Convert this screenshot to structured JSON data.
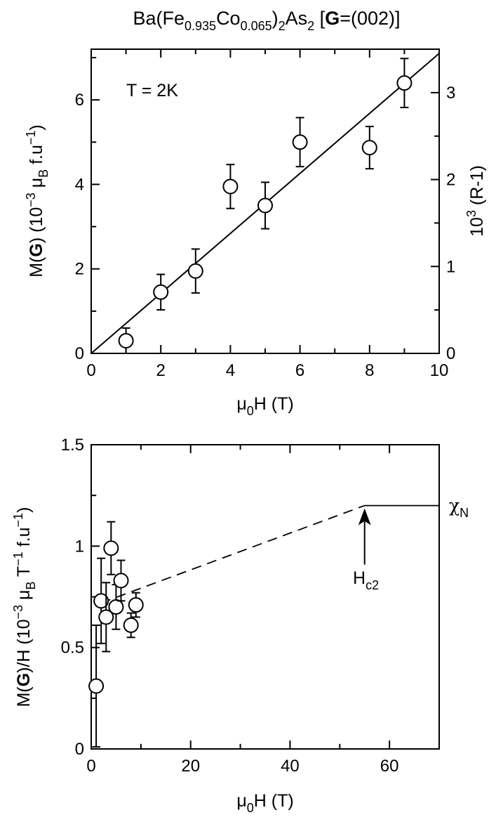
{
  "figure_title": {
    "prefix": "Ba(Fe",
    "sub1": "0.935",
    "mid": "Co",
    "sub2": "0.065",
    "close": ")",
    "sub3": "2",
    "as": "As",
    "sub4": "2",
    "bracket_open": " [",
    "bold": "G",
    "tail": "=(002)]"
  },
  "chart_data": [
    {
      "type": "scatter",
      "annotation": "T = 2K",
      "xlabel": {
        "main": "μ",
        "sub": "0",
        "rest": "H (T)"
      },
      "ylabel": {
        "a": "M(",
        "b": "G",
        "c": ") (10",
        "d": "−3",
        "e": " μ",
        "f": "B",
        "g": " f.u",
        "h": "−1",
        "i": ")"
      },
      "ylabel_right": {
        "a": "10",
        "b": "3",
        "c": " (R-1)"
      },
      "xlim": [
        0,
        10
      ],
      "ylim": [
        0,
        7.2
      ],
      "ylim_right": [
        0,
        3.5
      ],
      "x_ticks": [
        0,
        2,
        4,
        6,
        8,
        10
      ],
      "x_tick_labels": [
        "0",
        "2",
        "4",
        "6",
        "8",
        "10"
      ],
      "y_ticks": [
        0,
        2,
        4,
        6
      ],
      "y_tick_labels": [
        "0",
        "2",
        "4",
        "6"
      ],
      "y_right_ticks": [
        0,
        1,
        2,
        3
      ],
      "y_right_tick_labels": [
        "0",
        "1",
        "2",
        "3"
      ],
      "series": [
        {
          "x": [
            1,
            2,
            3,
            4,
            5,
            6,
            8,
            9
          ],
          "y": [
            0.3,
            1.45,
            1.95,
            3.95,
            3.5,
            5.0,
            4.87,
            6.4
          ],
          "err": [
            0.3,
            0.42,
            0.52,
            0.52,
            0.55,
            0.58,
            0.5,
            0.58
          ]
        }
      ],
      "fit_line": {
        "x": [
          0,
          10
        ],
        "y": [
          0,
          7.1
        ]
      }
    },
    {
      "type": "scatter",
      "xlabel": {
        "main": "μ",
        "sub": "0",
        "rest": "H (T)"
      },
      "ylabel": {
        "a": "M(",
        "b": "G",
        "c": ")/H (10",
        "d": "−3",
        "e": " μ",
        "f": "B",
        "g": " T",
        "h": "−1",
        "i": " f.u",
        "j": "−1",
        "k": ")"
      },
      "xlim": [
        0,
        70
      ],
      "ylim": [
        0,
        1.5
      ],
      "x_ticks": [
        0,
        20,
        40,
        60
      ],
      "x_tick_labels": [
        "0",
        "20",
        "40",
        "60"
      ],
      "y_ticks": [
        0,
        0.5,
        1,
        1.5
      ],
      "y_tick_labels": [
        "0",
        "0.5",
        "1",
        "1.5"
      ],
      "series": [
        {
          "x": [
            1,
            2,
            3,
            4,
            5,
            6,
            8,
            9
          ],
          "y": [
            0.31,
            0.73,
            0.65,
            0.99,
            0.7,
            0.83,
            0.61,
            0.71
          ],
          "err": [
            0.3,
            0.21,
            0.17,
            0.13,
            0.11,
            0.1,
            0.06,
            0.06
          ]
        }
      ],
      "dashed_line": {
        "x": [
          2,
          55
        ],
        "y": [
          0.72,
          1.2
        ]
      },
      "solid_line": {
        "x": [
          55,
          70
        ],
        "y": [
          1.2,
          1.2
        ]
      },
      "hc2_label": {
        "main": "H",
        "sub": "c2"
      },
      "hc2_x": 55,
      "chi_label": {
        "main": "χ",
        "sub": "N"
      }
    }
  ]
}
